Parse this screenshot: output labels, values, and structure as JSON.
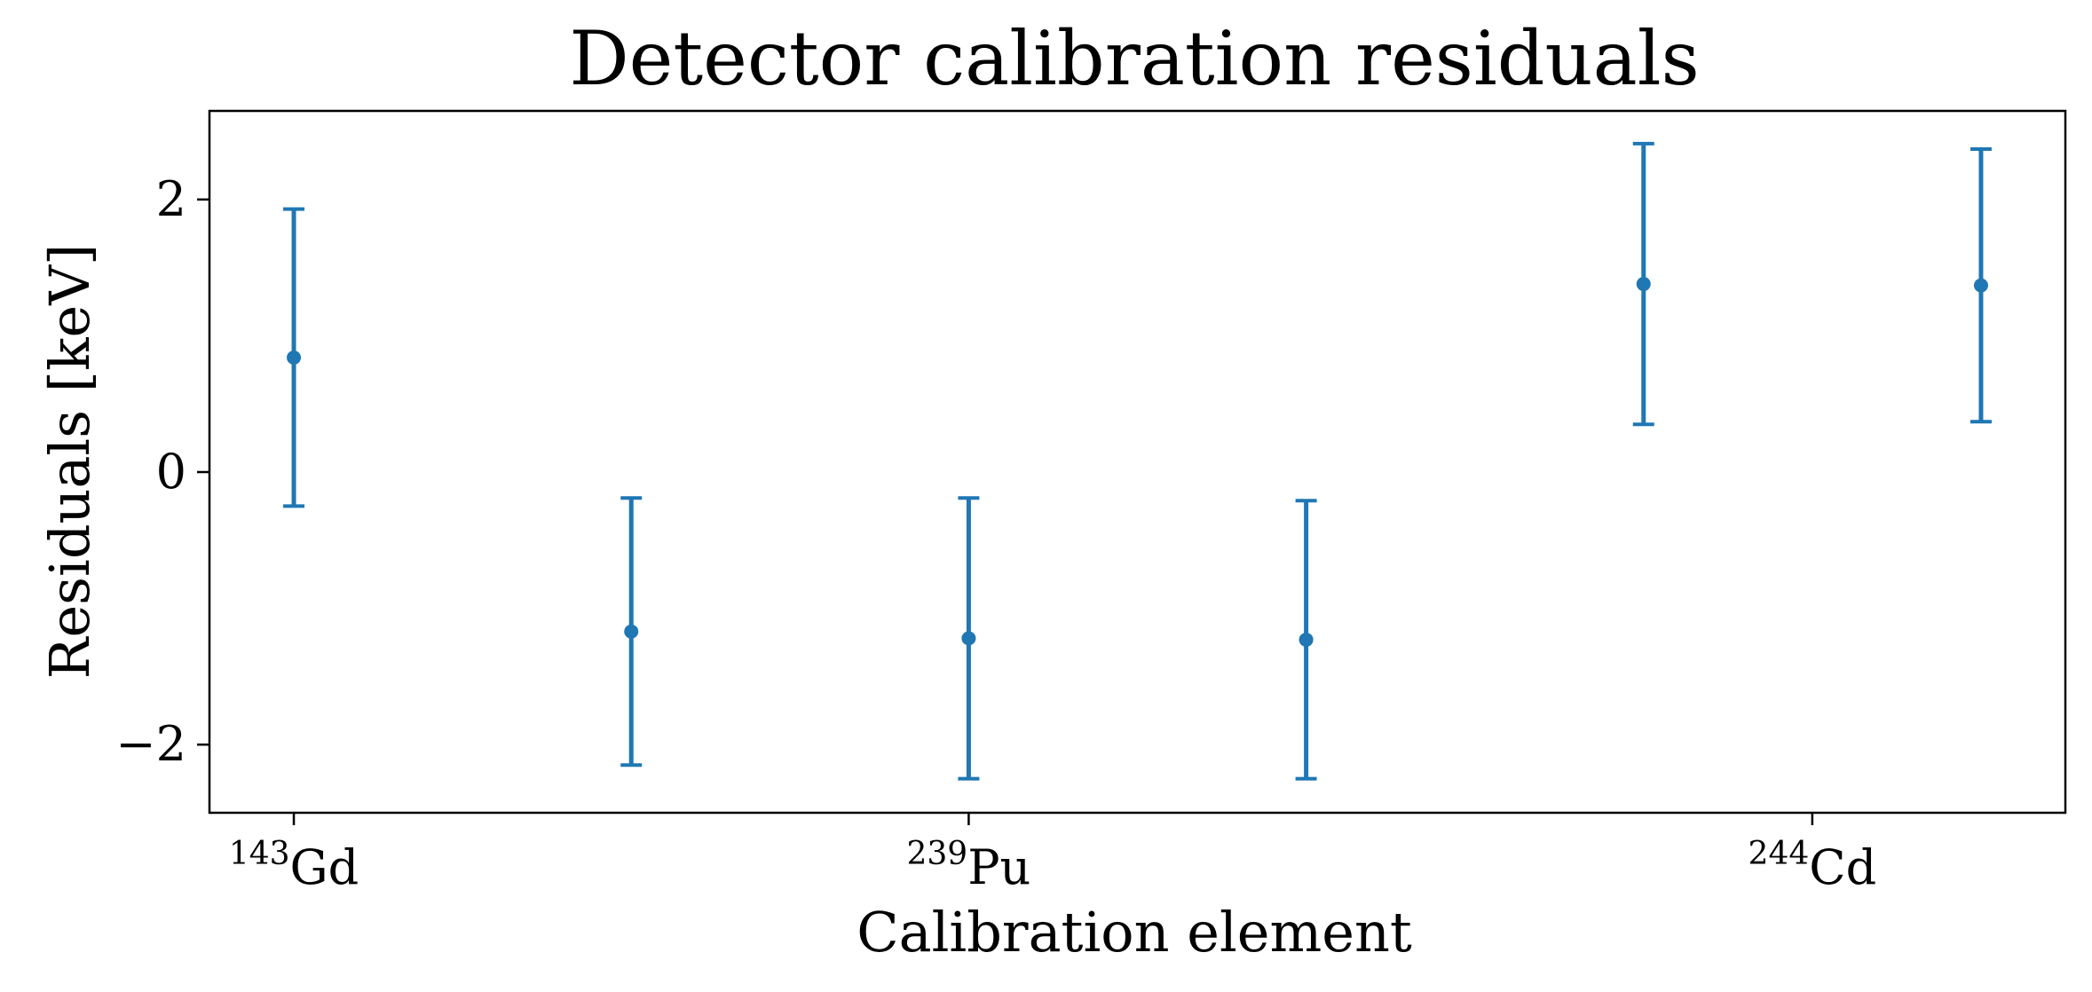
{
  "chart_data": {
    "type": "scatter",
    "title": "Detector calibration residuals",
    "xlabel": "Calibration element",
    "ylabel": "Residuals [keV]",
    "xlim": [
      -0.25,
      5.25
    ],
    "ylim": [
      -2.5,
      2.65
    ],
    "yticks": [
      {
        "value": -2,
        "label": "−2"
      },
      {
        "value": 0,
        "label": "0"
      },
      {
        "value": 2,
        "label": "2"
      }
    ],
    "xticks": [
      {
        "value": 0,
        "mass": "143",
        "symbol": "Gd"
      },
      {
        "value": 2,
        "mass": "239",
        "symbol": "Pu"
      },
      {
        "value": 4.5,
        "mass": "244",
        "symbol": "Cd"
      }
    ],
    "grid": false,
    "series": [
      {
        "color": "#1f77b4",
        "points": [
          {
            "x": 0,
            "y": 0.84,
            "err": 1.09
          },
          {
            "x": 1,
            "y": -1.17,
            "err": 0.98
          },
          {
            "x": 2,
            "y": -1.22,
            "err": 1.03
          },
          {
            "x": 3,
            "y": -1.23,
            "err": 1.02
          },
          {
            "x": 4,
            "y": 1.38,
            "err": 1.03
          },
          {
            "x": 5,
            "y": 1.37,
            "err": 1.0
          }
        ]
      }
    ]
  }
}
